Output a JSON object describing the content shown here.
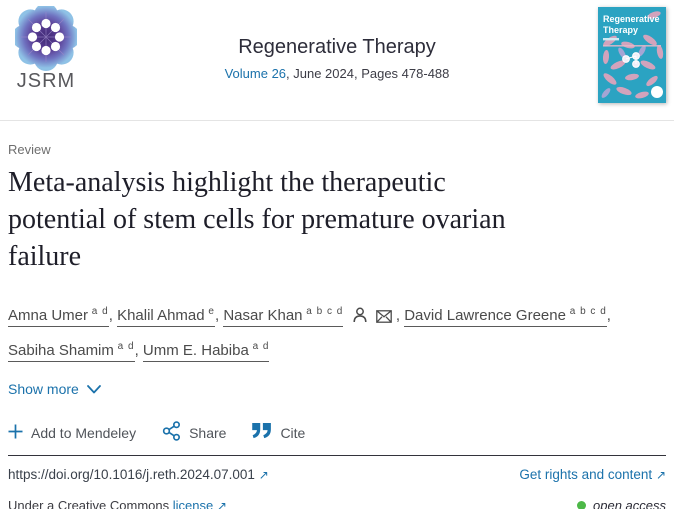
{
  "header": {
    "logo_text": "JSRM",
    "journal_title": "Regenerative Therapy",
    "volume_link": "Volume 26",
    "issue_rest": ", June 2024, Pages 478-488",
    "cover_title_line1": "Regenerative",
    "cover_title_line2": "Therapy"
  },
  "article": {
    "label": "Review",
    "title": "Meta-analysis highlight the therapeutic potential of stem cells for premature ovarian failure",
    "title_lines": [
      "Meta-analysis highlight the therapeutic",
      "potential of stem cells for premature ovarian",
      "failure"
    ],
    "show_more_label": "Show more"
  },
  "authors": [
    {
      "name": "Amna Umer",
      "sup": "a d",
      "icons": []
    },
    {
      "name": "Khalil Ahmad",
      "sup": "e",
      "icons": []
    },
    {
      "name": "Nasar Khan",
      "sup": "a b c d",
      "icons": [
        "person",
        "envelope"
      ]
    },
    {
      "name": "David Lawrence Greene",
      "sup": "a b c d",
      "icons": []
    },
    {
      "name": "Sabiha Shamim",
      "sup": "a d",
      "icons": []
    },
    {
      "name": "Umm E. Habiba",
      "sup": "a d",
      "icons": []
    }
  ],
  "actions": {
    "mendeley_label": "Add to Mendeley",
    "share_label": "Share",
    "cite_label": "Cite"
  },
  "footer": {
    "doi": "https://doi.org/10.1016/j.reth.2024.07.001",
    "rights_label": "Get rights and content",
    "license_prefix": "Under a Creative Commons",
    "license_link_label": "license",
    "open_access_label": "open access"
  },
  "colors": {
    "link_blue": "#1b72ab",
    "open_access_green": "#4db848",
    "cover_teal": "#2ba3c2"
  }
}
